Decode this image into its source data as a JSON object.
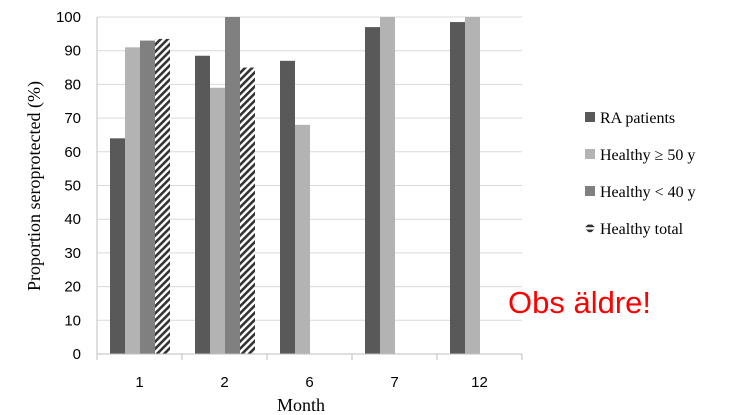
{
  "colors": {
    "ra_patients": "#595959",
    "healthy_ge_50": "#b3b3b3",
    "healthy_lt_40": "#808080",
    "healthy_total": "#333333",
    "gridline": "#d9d9d9",
    "axis": "#bfbfbf",
    "annotation": "#ff0000"
  },
  "annotation": "Obs äldre!",
  "chart_data": {
    "type": "bar",
    "categories": [
      "1",
      "2",
      "6",
      "7",
      "12"
    ],
    "series": [
      {
        "name": "RA patients",
        "values": [
          64,
          88.5,
          87,
          97,
          98.5
        ],
        "pattern": "solid"
      },
      {
        "name": "Healthy ≥ 50 y",
        "values": [
          91,
          79,
          68,
          100,
          100
        ],
        "pattern": "solid"
      },
      {
        "name": "Healthy < 40 y",
        "values": [
          93,
          100,
          null,
          null,
          null
        ],
        "pattern": "solid"
      },
      {
        "name": "Healthy total",
        "values": [
          93.5,
          85,
          null,
          null,
          null
        ],
        "pattern": "hatched"
      }
    ],
    "xlabel": "Month",
    "ylabel": "Proportion seroprotected (%)",
    "ylim": [
      0,
      100
    ],
    "yticks": [
      0,
      10,
      20,
      30,
      40,
      50,
      60,
      70,
      80,
      90,
      100
    ],
    "grid": true,
    "legend_position": "right"
  }
}
